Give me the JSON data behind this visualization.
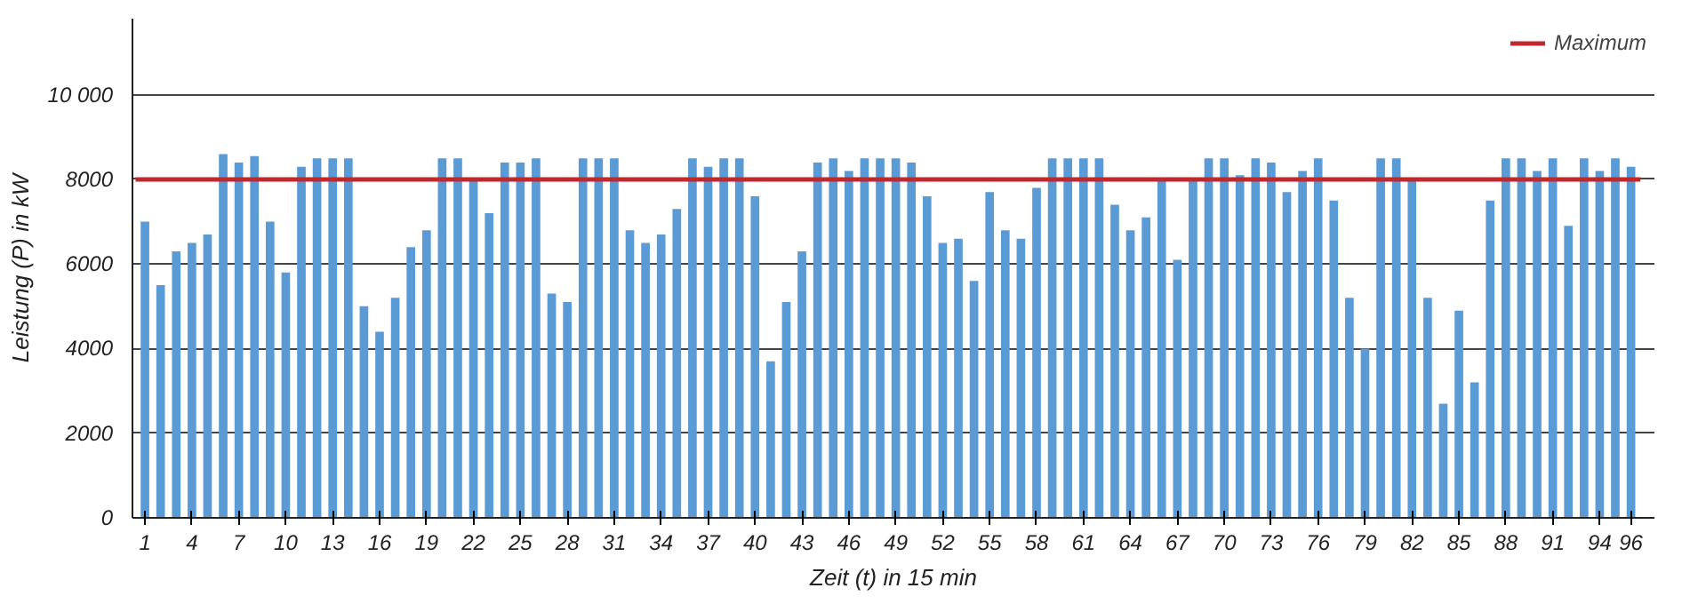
{
  "chart_data": {
    "type": "bar",
    "xlabel": "Zeit (t) in 15 min",
    "ylabel": "Leistung (P) in kW",
    "categories": [
      "1",
      null,
      null,
      "4",
      null,
      null,
      "7",
      null,
      null,
      "10",
      null,
      null,
      "13",
      null,
      null,
      "16",
      null,
      null,
      "19",
      null,
      null,
      "22",
      null,
      null,
      "25",
      null,
      null,
      "28",
      null,
      null,
      "31",
      null,
      null,
      "34",
      null,
      null,
      "37",
      null,
      null,
      "40",
      null,
      null,
      "43",
      null,
      null,
      "46",
      null,
      null,
      "49",
      null,
      null,
      "52",
      null,
      null,
      "55",
      null,
      null,
      "58",
      null,
      null,
      "61",
      null,
      null,
      "64",
      null,
      null,
      "67",
      null,
      null,
      "70",
      null,
      null,
      "73",
      null,
      null,
      "76",
      null,
      null,
      "79",
      null,
      null,
      "82",
      null,
      null,
      "85",
      null,
      null,
      "88",
      null,
      null,
      "91",
      null,
      null,
      "94",
      null,
      "96"
    ],
    "values": [
      7000,
      5500,
      6300,
      6500,
      6700,
      8600,
      8400,
      8550,
      7000,
      5800,
      8300,
      8500,
      8500,
      8500,
      5000,
      4400,
      5200,
      6400,
      6800,
      8500,
      8500,
      8000,
      7200,
      8400,
      8400,
      8500,
      5300,
      5100,
      8500,
      8500,
      8500,
      6800,
      6500,
      6700,
      7300,
      8500,
      8300,
      8500,
      8500,
      7600,
      3700,
      5100,
      6300,
      8400,
      8500,
      8200,
      8500,
      8500,
      8500,
      8400,
      7600,
      6500,
      6600,
      5600,
      7700,
      6800,
      6600,
      7800,
      8500,
      8500,
      8500,
      8500,
      7400,
      6800,
      7100,
      8000,
      6100,
      8000,
      8500,
      8500,
      8100,
      8500,
      8400,
      7700,
      8200,
      8500,
      7500,
      5200,
      4000,
      8500,
      8500,
      8000,
      5200,
      2700,
      4900,
      3200,
      7500,
      8500,
      8500,
      8200,
      8500,
      6900,
      8500,
      8200,
      8500,
      8300
    ],
    "color": "#5b9bd5",
    "ylim": [
      0,
      11800
    ],
    "yticks": [
      0,
      2000,
      4000,
      6000,
      8000,
      {
        "value": 10000,
        "label": "10 000"
      }
    ],
    "grid": "y",
    "legend": "top right",
    "ref_lines": [
      {
        "axis": "y",
        "value": 8000,
        "label": "Maximum",
        "color": "#c0282c"
      }
    ]
  }
}
